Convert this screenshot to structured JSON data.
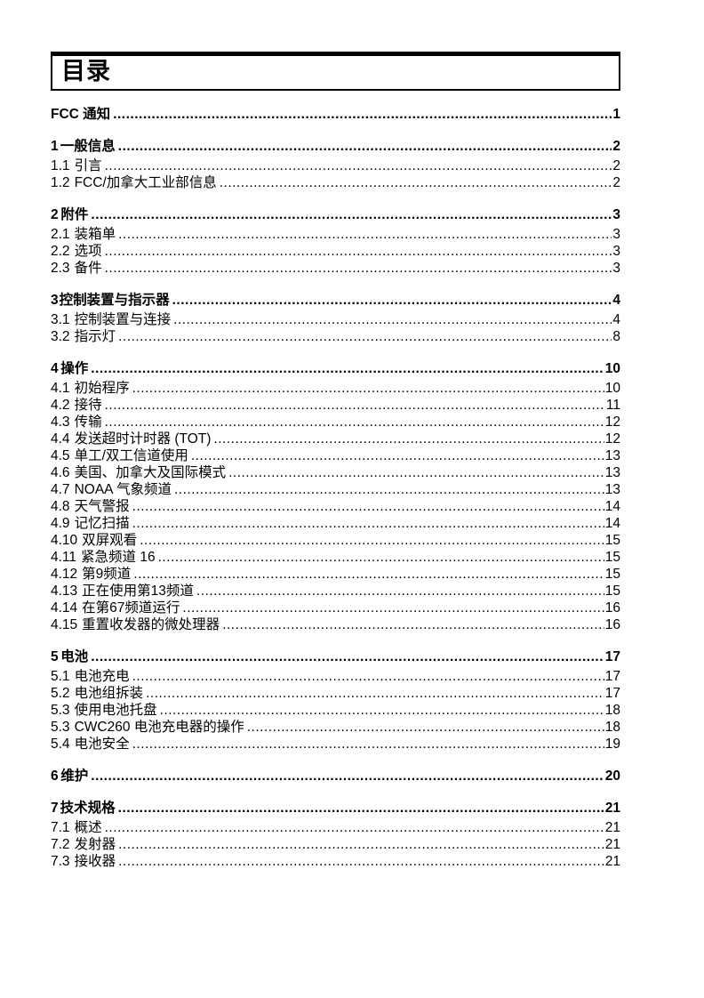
{
  "page": {
    "title": "目录"
  },
  "toc": {
    "entries": [
      {
        "num": "",
        "title": "FCC 通知",
        "page": "1",
        "level": "chapter"
      },
      {
        "num": "1",
        "title": "一般信息",
        "page": "2",
        "level": "chapter"
      },
      {
        "num": "1.1",
        "title": "引言",
        "page": "2",
        "level": "sub"
      },
      {
        "num": "1.2",
        "title": "FCC/加拿大工业部信息",
        "page": "2",
        "level": "sub"
      },
      {
        "num": "2",
        "title": "附件",
        "page": "3",
        "level": "chapter"
      },
      {
        "num": "2.1",
        "title": "装箱单",
        "page": "3",
        "level": "sub"
      },
      {
        "num": "2.2",
        "title": "选项",
        "page": "3",
        "level": "sub"
      },
      {
        "num": "2.3",
        "title": "备件",
        "page": "3",
        "level": "sub"
      },
      {
        "num": "3",
        "title": "控制装置与指示器",
        "page": "4",
        "level": "chapter"
      },
      {
        "num": "3.1",
        "title": "控制装置与连接",
        "page": "4",
        "level": "sub"
      },
      {
        "num": "3.2",
        "title": "指示灯",
        "page": "8",
        "level": "sub"
      },
      {
        "num": "4",
        "title": "操作",
        "page": "10",
        "level": "chapter"
      },
      {
        "num": "4.1",
        "title": "初始程序",
        "page": "10",
        "level": "sub"
      },
      {
        "num": "4.2",
        "title": "接待",
        "page": "11",
        "level": "sub"
      },
      {
        "num": "4.3",
        "title": "传输",
        "page": "12",
        "level": "sub"
      },
      {
        "num": "4.4",
        "title": "发送超时计时器 (TOT)",
        "page": "12",
        "level": "sub"
      },
      {
        "num": "4.5",
        "title": "单工/双工信道使用",
        "page": "13",
        "level": "sub"
      },
      {
        "num": "4.6",
        "title": "美国、加拿大及国际模式",
        "page": "13",
        "level": "sub"
      },
      {
        "num": "4.7",
        "title": "NOAA 气象频道",
        "page": "13",
        "level": "sub"
      },
      {
        "num": "4.8",
        "title": "天气警报",
        "page": "14",
        "level": "sub"
      },
      {
        "num": "4.9",
        "title": "记忆扫描",
        "page": "14",
        "level": "sub"
      },
      {
        "num": "4.10",
        "title": "双屏观看",
        "page": "15",
        "level": "sub"
      },
      {
        "num": "4.11",
        "title": "紧急频道 16",
        "page": "15",
        "level": "sub"
      },
      {
        "num": "4.12",
        "title": "第9频道",
        "page": "15",
        "level": "sub"
      },
      {
        "num": "4.13",
        "title": "正在使用第13频道",
        "page": "15",
        "level": "sub"
      },
      {
        "num": "4.14",
        "title": "在第67频道运行",
        "page": "16",
        "level": "sub"
      },
      {
        "num": "4.15",
        "title": "重置收发器的微处理器",
        "page": "16",
        "level": "sub"
      },
      {
        "num": "5",
        "title": "电池",
        "page": "17",
        "level": "chapter"
      },
      {
        "num": "5.1",
        "title": "电池充电",
        "page": "17",
        "level": "sub"
      },
      {
        "num": "5.2",
        "title": "电池组拆装",
        "page": "17",
        "level": "sub"
      },
      {
        "num": "5.3",
        "title": "使用电池托盘",
        "page": "18",
        "level": "sub"
      },
      {
        "num": "5.3",
        "title": "CWC260 电池充电器的操作",
        "page": "18",
        "level": "sub"
      },
      {
        "num": "5.4",
        "title": "电池安全",
        "page": "19",
        "level": "sub"
      },
      {
        "num": "6",
        "title": "维护",
        "page": "20",
        "level": "chapter"
      },
      {
        "num": "7",
        "title": "技术规格",
        "page": "21",
        "level": "chapter"
      },
      {
        "num": "7.1",
        "title": "概述",
        "page": "21",
        "level": "sub"
      },
      {
        "num": "7.2",
        "title": "发射器",
        "page": "21",
        "level": "sub"
      },
      {
        "num": "7.3",
        "title": "接收器",
        "page": "21",
        "level": "sub"
      }
    ]
  }
}
